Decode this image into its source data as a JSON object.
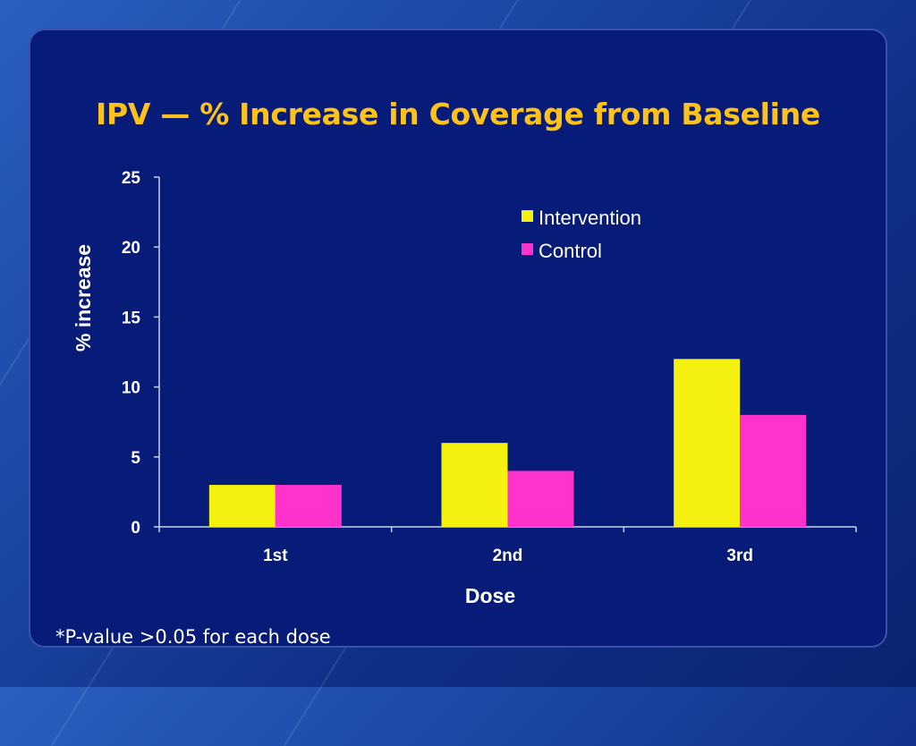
{
  "chart_data": {
    "type": "bar",
    "title": "IPV — % Increase in Coverage from Baseline",
    "xlabel": "Dose",
    "ylabel": "% increase",
    "categories": [
      "1st",
      "2nd",
      "3rd"
    ],
    "series": [
      {
        "name": "Intervention",
        "values": [
          3,
          6,
          12
        ],
        "color": "#f4f00f"
      },
      {
        "name": "Control",
        "values": [
          3,
          4,
          8
        ],
        "color": "#ff33cc"
      }
    ],
    "ylim": [
      0,
      25
    ],
    "yticks": [
      0,
      5,
      10,
      15,
      20,
      25
    ],
    "grid": false,
    "legend_position": "top-right"
  },
  "footnote": "*P-value >0.05 for each dose"
}
